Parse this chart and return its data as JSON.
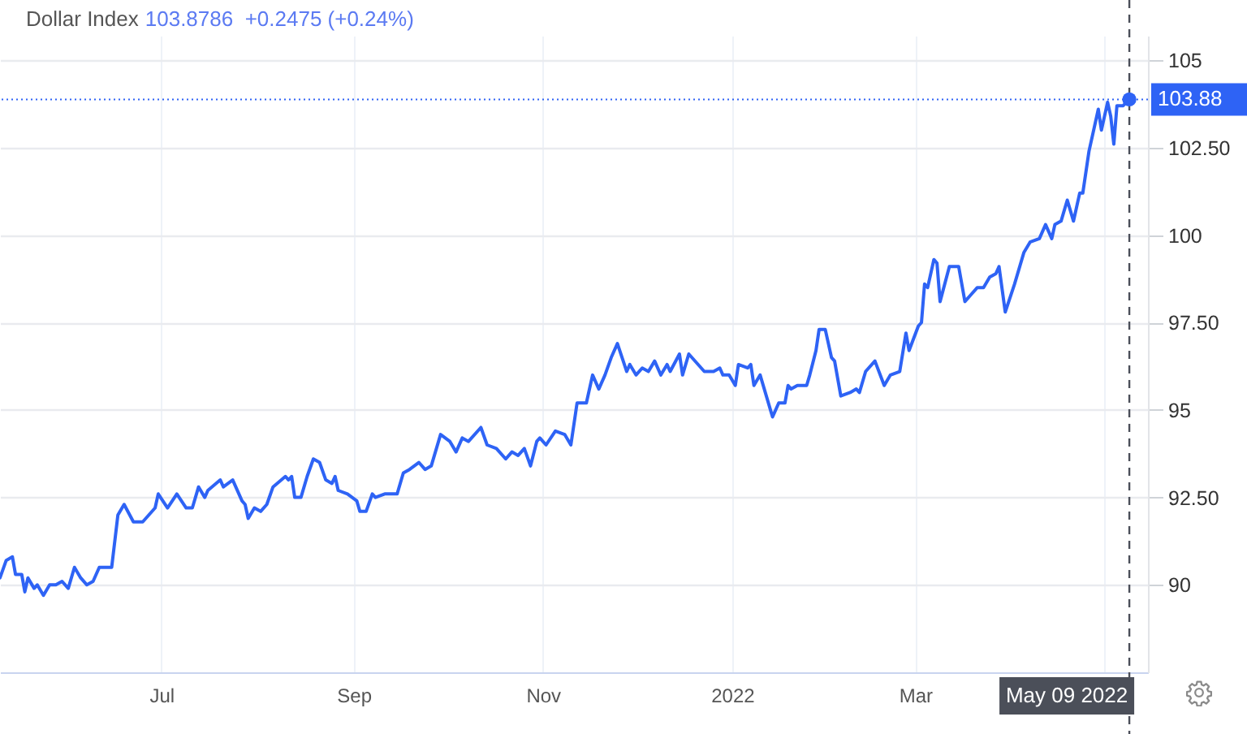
{
  "chart_data": {
    "type": "line",
    "title": "Dollar Index",
    "subtitle": "103.8786  +0.2475 (+0.24%)",
    "x": [
      "2021-05-10",
      "2021-05-12",
      "2021-05-14",
      "2021-05-15",
      "2021-05-17",
      "2021-05-18",
      "2021-05-19",
      "2021-05-21",
      "2021-05-22",
      "2021-05-24",
      "2021-05-26",
      "2021-05-28",
      "2021-05-30",
      "2021-06-01",
      "2021-06-03",
      "2021-06-05",
      "2021-06-07",
      "2021-06-09",
      "2021-06-11",
      "2021-06-15",
      "2021-06-17",
      "2021-06-19",
      "2021-06-22",
      "2021-06-25",
      "2021-06-29",
      "2021-06-30",
      "2021-07-03",
      "2021-07-06",
      "2021-07-09",
      "2021-07-11",
      "2021-07-13",
      "2021-07-15",
      "2021-07-16",
      "2021-07-20",
      "2021-07-21",
      "2021-07-24",
      "2021-07-27",
      "2021-07-28",
      "2021-07-29",
      "2021-07-31",
      "2021-08-02",
      "2021-08-04",
      "2021-08-06",
      "2021-08-10",
      "2021-08-11",
      "2021-08-12",
      "2021-08-13",
      "2021-08-15",
      "2021-08-17",
      "2021-08-19",
      "2021-08-21",
      "2021-08-23",
      "2021-08-25",
      "2021-08-26",
      "2021-08-27",
      "2021-08-30",
      "2021-09-02",
      "2021-09-03",
      "2021-09-05",
      "2021-09-07",
      "2021-09-08",
      "2021-09-11",
      "2021-09-15",
      "2021-09-17",
      "2021-09-19",
      "2021-09-22",
      "2021-09-24",
      "2021-09-26",
      "2021-09-29",
      "2021-10-02",
      "2021-10-04",
      "2021-10-06",
      "2021-10-08",
      "2021-10-12",
      "2021-10-14",
      "2021-10-17",
      "2021-10-20",
      "2021-10-22",
      "2021-10-24",
      "2021-10-26",
      "2021-10-28",
      "2021-10-30",
      "2021-10-31",
      "2021-11-02",
      "2021-11-05",
      "2021-11-08",
      "2021-11-10",
      "2021-11-12",
      "2021-11-15",
      "2021-11-17",
      "2021-11-19",
      "2021-11-21",
      "2021-11-23",
      "2021-11-25",
      "2021-11-28",
      "2021-11-29",
      "2021-12-01",
      "2021-12-03",
      "2021-12-05",
      "2021-12-07",
      "2021-12-09",
      "2021-12-11",
      "2021-12-12",
      "2021-12-15",
      "2021-12-16",
      "2021-12-18",
      "2021-12-23",
      "2021-12-26",
      "2021-12-28",
      "2021-12-29",
      "2021-12-31",
      "2022-01-02",
      "2022-01-03",
      "2022-01-06",
      "2022-01-07",
      "2022-01-08",
      "2022-01-10",
      "2022-01-14",
      "2022-01-16",
      "2022-01-18",
      "2022-01-19",
      "2022-01-20",
      "2022-01-22",
      "2022-01-25",
      "2022-01-26",
      "2022-01-28",
      "2022-01-29",
      "2022-01-31",
      "2022-02-02",
      "2022-02-03",
      "2022-02-05",
      "2022-02-08",
      "2022-02-10",
      "2022-02-11",
      "2022-02-13",
      "2022-02-16",
      "2022-02-19",
      "2022-02-21",
      "2022-02-24",
      "2022-02-26",
      "2022-02-27",
      "2022-03-02",
      "2022-03-03",
      "2022-03-04",
      "2022-03-05",
      "2022-03-07",
      "2022-03-08",
      "2022-03-09",
      "2022-03-12",
      "2022-03-15",
      "2022-03-17",
      "2022-03-19",
      "2022-03-21",
      "2022-03-23",
      "2022-03-25",
      "2022-03-27",
      "2022-03-28",
      "2022-03-30",
      "2022-04-02",
      "2022-04-05",
      "2022-04-07",
      "2022-04-10",
      "2022-04-12",
      "2022-04-14",
      "2022-04-15",
      "2022-04-17",
      "2022-04-19",
      "2022-04-21",
      "2022-04-23",
      "2022-04-24",
      "2022-04-26",
      "2022-04-29",
      "2022-04-30",
      "2022-05-02",
      "2022-05-03",
      "2022-05-04",
      "2022-05-05",
      "2022-05-07",
      "2022-05-09"
    ],
    "series": [
      {
        "color": "#2e63f5",
        "values": [
          90.2,
          90.7,
          90.8,
          90.3,
          90.3,
          89.8,
          90.2,
          89.9,
          90.0,
          89.7,
          90.0,
          90.0,
          90.1,
          89.9,
          90.5,
          90.2,
          90.0,
          90.1,
          90.5,
          90.5,
          92.0,
          92.3,
          91.8,
          91.8,
          92.2,
          92.6,
          92.2,
          92.6,
          92.2,
          92.2,
          92.8,
          92.5,
          92.7,
          93.0,
          92.8,
          93.0,
          92.4,
          92.3,
          91.9,
          92.2,
          92.1,
          92.3,
          92.8,
          93.1,
          93.0,
          93.1,
          92.5,
          92.5,
          93.1,
          93.6,
          93.5,
          93.0,
          92.9,
          93.1,
          92.7,
          92.6,
          92.4,
          92.1,
          92.1,
          92.6,
          92.5,
          92.6,
          92.6,
          93.2,
          93.3,
          93.5,
          93.3,
          93.4,
          94.3,
          94.1,
          93.8,
          94.2,
          94.1,
          94.5,
          94.0,
          93.9,
          93.6,
          93.8,
          93.7,
          93.9,
          93.4,
          94.1,
          94.2,
          94.0,
          94.4,
          94.3,
          94.0,
          95.2,
          95.2,
          96.0,
          95.6,
          96.0,
          96.5,
          96.9,
          96.1,
          96.3,
          96.0,
          96.2,
          96.1,
          96.4,
          96.0,
          96.3,
          96.1,
          96.6,
          96.0,
          96.6,
          96.1,
          96.1,
          96.2,
          96.0,
          96.0,
          95.7,
          96.3,
          96.2,
          96.3,
          95.7,
          96.0,
          94.8,
          95.2,
          95.2,
          95.7,
          95.6,
          95.7,
          95.7,
          96.0,
          96.7,
          97.3,
          97.3,
          96.5,
          96.4,
          95.4,
          95.5,
          95.6,
          95.5,
          96.1,
          96.4,
          95.7,
          96.0,
          96.1,
          97.2,
          96.7,
          97.4,
          97.5,
          98.6,
          98.5,
          99.3,
          99.2,
          98.1,
          99.1,
          99.1,
          98.1,
          98.3,
          98.5,
          98.5,
          98.8,
          98.9,
          99.1,
          97.8,
          98.6,
          99.5,
          99.8,
          99.9,
          100.3,
          99.9,
          100.3,
          100.4,
          101.0,
          100.4,
          101.2,
          101.2,
          102.4,
          103.6,
          103.0,
          103.8,
          103.4,
          102.6,
          103.7,
          103.7,
          103.88
        ]
      },
      {
        "type": "scatter",
        "x": [
          "2022-05-09"
        ],
        "values": [
          103.88
        ],
        "color": "#2e63f5"
      }
    ],
    "xlim": [
      "2021-05-10",
      "2022-05-15"
    ],
    "ylim": [
      87.5,
      105.7
    ],
    "xticks": [
      {
        "value": "2021-07-01",
        "label": "Jul"
      },
      {
        "value": "2021-09-01",
        "label": "Sep"
      },
      {
        "value": "2021-11-01",
        "label": "Nov"
      },
      {
        "value": "2022-01-01",
        "label": "2022"
      },
      {
        "value": "2022-03-01",
        "label": "Mar"
      },
      {
        "value": "2022-05-01",
        "label": null
      }
    ],
    "yticks": [
      90,
      {
        "value": 92.5,
        "label": "92.50"
      },
      95,
      {
        "value": 97.5,
        "label": "97.50"
      },
      100,
      {
        "value": 102.5,
        "label": "102.50"
      },
      105
    ],
    "grid": true,
    "ref_lines": [
      {
        "axis": "y",
        "value": 103.88,
        "label": "103.88",
        "color": "#2e63f5",
        "line_style": "dotted"
      },
      {
        "axis": "x",
        "value": "2022-05-09",
        "label": "May 09 2022",
        "color": "#4b4f59",
        "line_style": "dashed"
      }
    ]
  }
}
